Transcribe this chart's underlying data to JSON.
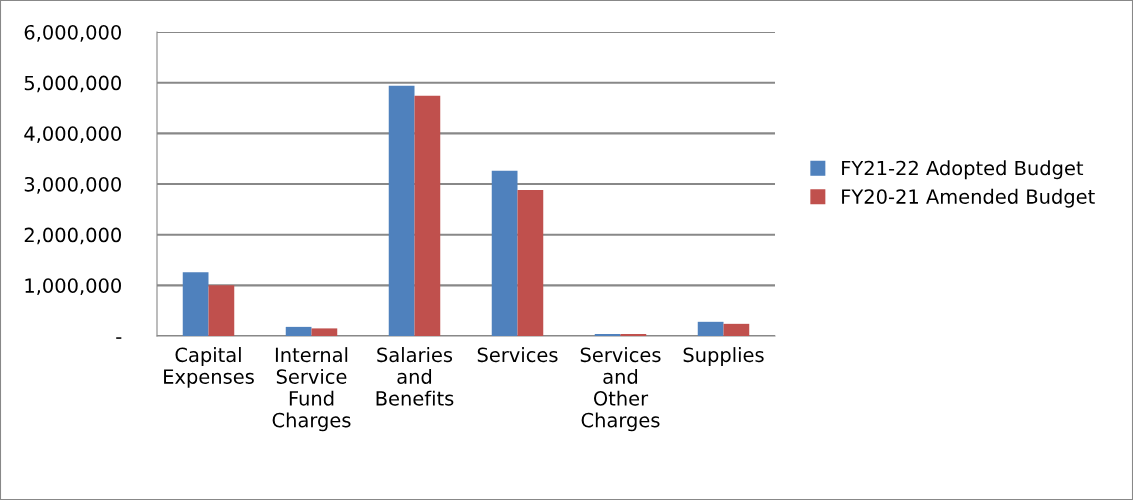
{
  "chart_data": {
    "type": "bar",
    "categories": [
      "Capital Expenses",
      "Internal Service Fund Charges",
      "Salaries and Benefits",
      "Services",
      "Services and Other Charges",
      "Supplies"
    ],
    "series": [
      {
        "name": "FY21-22 Adopted Budget",
        "color": "#4f81bd",
        "values": [
          1260000,
          180000,
          4940000,
          3260000,
          40000,
          280000
        ]
      },
      {
        "name": "FY20-21 Amended Budget",
        "color": "#c0504d",
        "values": [
          1000000,
          150000,
          4740000,
          2880000,
          40000,
          240000
        ]
      }
    ],
    "ylim": [
      0,
      6000000
    ],
    "yticks": [
      {
        "value": 0,
        "label": "-"
      },
      {
        "value": 1000000,
        "label": "1,000,000"
      },
      {
        "value": 2000000,
        "label": "2,000,000"
      },
      {
        "value": 3000000,
        "label": "3,000,000"
      },
      {
        "value": 4000000,
        "label": "4,000,000"
      },
      {
        "value": 5000000,
        "label": "5,000,000"
      },
      {
        "value": 6000000,
        "label": "6,000,000"
      }
    ],
    "grid": "y",
    "legend": "right"
  }
}
